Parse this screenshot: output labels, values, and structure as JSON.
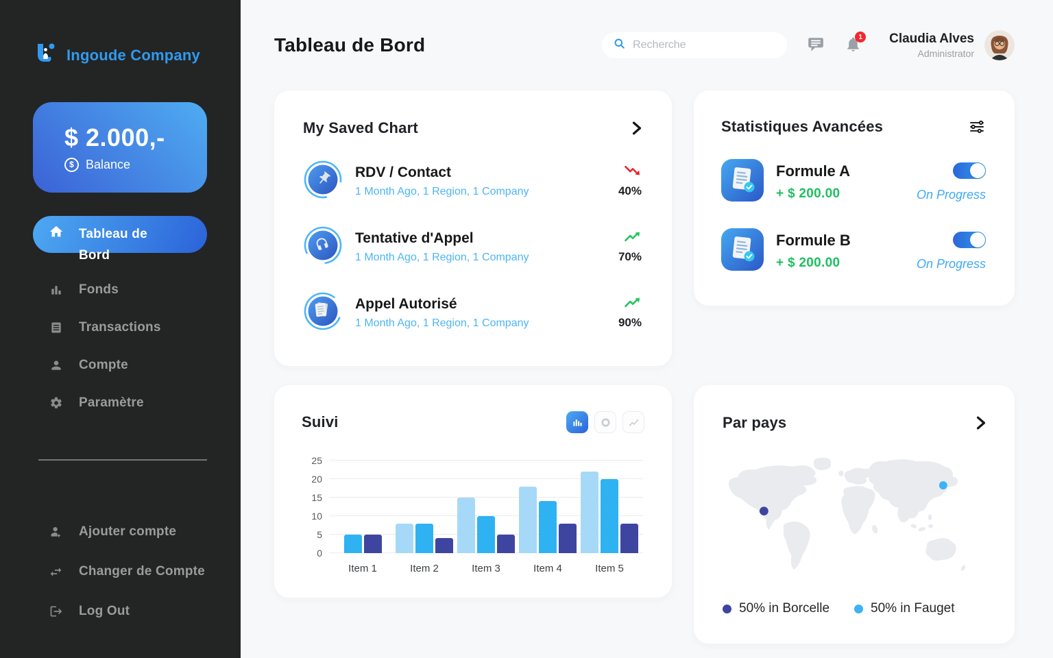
{
  "colors": {
    "accent": "#2f9bf0",
    "trend_up": "#21c45d",
    "trend_down": "#e8262d",
    "bar_light": "#a6d9f8",
    "bar_mid": "#2fb2f2",
    "bar_dark": "#3e45a0"
  },
  "sidebar": {
    "brand": "Ingoude Company",
    "balance": {
      "amount": "$ 2.000,-",
      "currency_symbol": "$",
      "label": "Balance"
    },
    "items": [
      {
        "label": "Tableau de Bord",
        "active": true
      },
      {
        "label": "Fonds",
        "active": false
      },
      {
        "label": "Transactions",
        "active": false
      },
      {
        "label": "Compte",
        "active": false
      },
      {
        "label": "Paramètre",
        "active": false
      }
    ],
    "footer_items": [
      {
        "label": "Ajouter compte"
      },
      {
        "label": "Changer de Compte"
      },
      {
        "label": "Log Out"
      }
    ]
  },
  "header": {
    "title": "Tableau de Bord",
    "search_placeholder": "Recherche",
    "notification_count": "1",
    "user": {
      "name": "Claudia Alves",
      "role": "Administrator"
    }
  },
  "saved_chart": {
    "title": "My Saved Chart",
    "items": [
      {
        "icon": "pin-icon",
        "title": "RDV / Contact",
        "subtitle": "1 Month Ago, 1 Region, 1 Company",
        "trend": "down",
        "value": "40%"
      },
      {
        "icon": "headphones-icon",
        "title": "Tentative d'Appel",
        "subtitle": "1 Month Ago, 1 Region, 1 Company",
        "trend": "up",
        "value": "70%"
      },
      {
        "icon": "documents-icon",
        "title": "Appel Autorisé",
        "subtitle": "1 Month Ago, 1 Region, 1 Company",
        "trend": "up",
        "value": "90%"
      }
    ]
  },
  "suivi": {
    "title": "Suivi"
  },
  "chart_data": {
    "type": "bar",
    "title": "Suivi",
    "categories": [
      "Item 1",
      "Item 2",
      "Item 3",
      "Item 4",
      "Item 5"
    ],
    "series": [
      {
        "name": "light-blue",
        "color": "#a6d9f8",
        "values": [
          0,
          8,
          15,
          18,
          22
        ]
      },
      {
        "name": "mid-blue",
        "color": "#2fb2f2",
        "values": [
          5,
          8,
          10,
          14,
          20
        ]
      },
      {
        "name": "dark-navy",
        "color": "#3e45a0",
        "values": [
          5,
          4,
          5,
          8,
          8
        ]
      }
    ],
    "xlabel": "",
    "ylabel": "",
    "ylim": [
      0,
      25
    ],
    "ytick_step": 5,
    "grid": true,
    "legend": "none"
  },
  "stats": {
    "title": "Statistiques Avancées",
    "items": [
      {
        "icon": "doc-check-icon",
        "title": "Formule A",
        "amount": "+ $ 200.00",
        "status": "On Progress",
        "toggle_on": true
      },
      {
        "icon": "doc-check-icon",
        "title": "Formule B",
        "amount": "+ $ 200.00",
        "status": "On Progress",
        "toggle_on": true
      }
    ]
  },
  "par_pays": {
    "title": "Par pays",
    "legend": [
      {
        "label": "50% in Borcelle",
        "color": "#3e45a0"
      },
      {
        "label": "50% in Fauget",
        "color": "#3db3f5"
      }
    ]
  }
}
